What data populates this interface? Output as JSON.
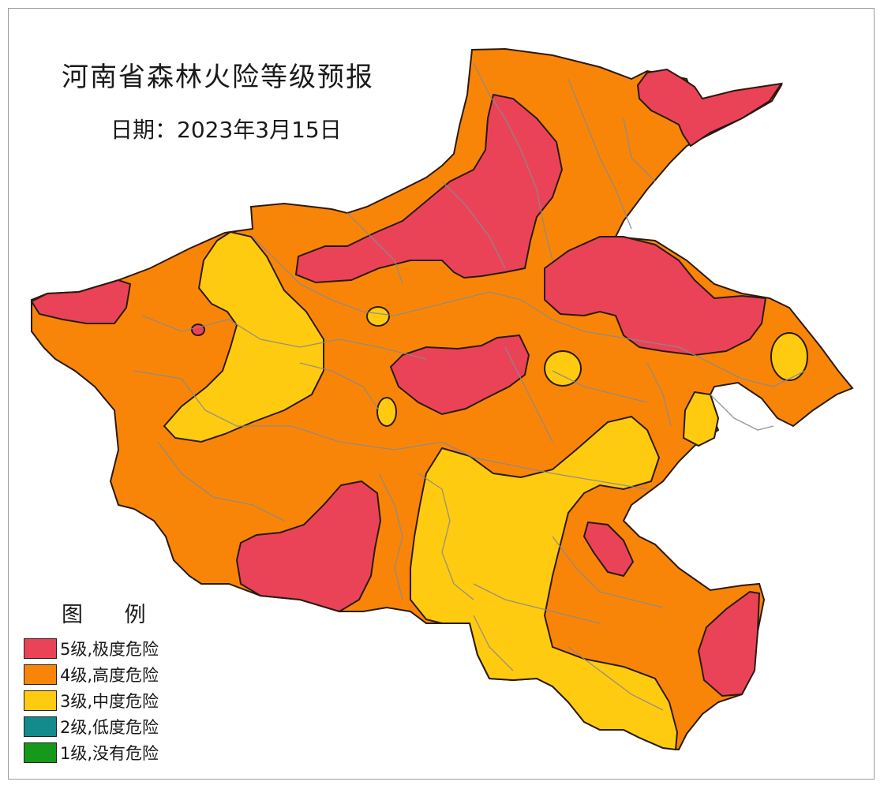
{
  "map": {
    "title": "河南省森林火险等级预报",
    "date_text": "日期：2023年3月15日",
    "legend_title": "图 例",
    "legend": [
      {
        "label": "5级,极度危险",
        "color": "#ea4358"
      },
      {
        "label": "4级,高度危险",
        "color": "#f98508"
      },
      {
        "label": "3级,中度危险",
        "color": "#fecb10"
      },
      {
        "label": "2级,低度危险",
        "color": "#138a8c"
      },
      {
        "label": "1级,没有危险",
        "color": "#16991a"
      }
    ],
    "colors": {
      "level5": "#ea4358",
      "level4": "#f98508",
      "level3": "#fecb10",
      "border": "#2a1a10",
      "county_lines": "#8a8a8a"
    }
  }
}
